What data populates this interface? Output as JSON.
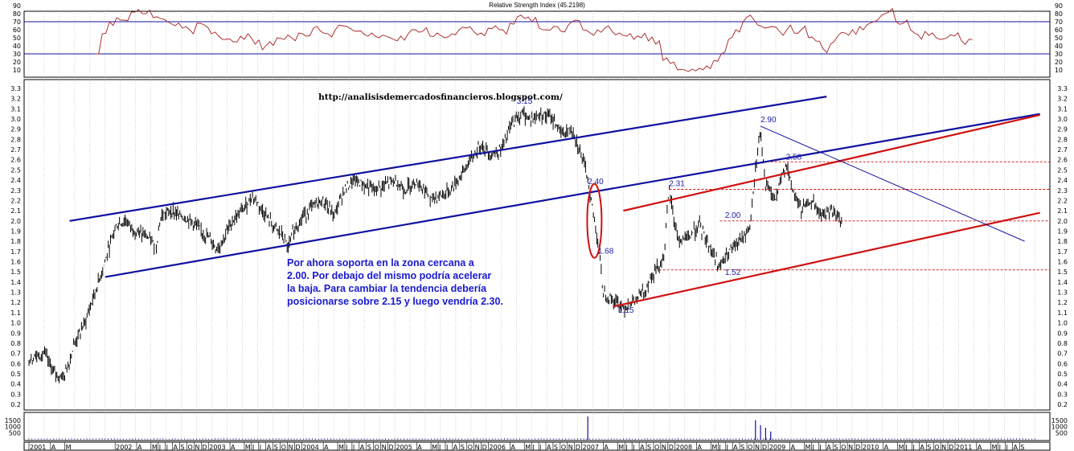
{
  "rsi_title": "Relative Strength Index (45.2198)",
  "url": "http://analisisdemercadosfinancieros.blogspot.com/",
  "comment": "Por ahora soporta en la zona cercana a\n2.00. Por debajo del mismo podría acelerar\nla baja. Para cambiar la tendencia debería\nposicionarse sobre 2.15 y luego vendría 2.30.",
  "colors": {
    "rsi_line": "#a82020",
    "channel_blue": "#1010a0",
    "channel_red": "#d01010",
    "annotation": "#1a1aa6",
    "price_bars": "#000000",
    "grid": "#b0b0b0"
  },
  "chart_data": [
    {
      "type": "line",
      "name": "rsi_panel",
      "title": "Relative Strength Index (45.2198)",
      "ylim": [
        0,
        95
      ],
      "y_ticks": [
        "90",
        "80",
        "70",
        "60",
        "50",
        "40",
        "30",
        "20",
        "10"
      ],
      "reference_lines": [
        70,
        30
      ],
      "series": [
        {
          "values": [
            30,
            55,
            70,
            75,
            72,
            82,
            85,
            80,
            75,
            74,
            70,
            65,
            62,
            60,
            68,
            66,
            55,
            52,
            48,
            45,
            52,
            55,
            42,
            35,
            45,
            50,
            48,
            50,
            56,
            52,
            62,
            58,
            55,
            60,
            65,
            62,
            58,
            54,
            56,
            50,
            52,
            48,
            52,
            55,
            60,
            58,
            52,
            56,
            50,
            55,
            60,
            62,
            58,
            56,
            62,
            65,
            60,
            68,
            76,
            74,
            70,
            62,
            60,
            64,
            58,
            66,
            72,
            60,
            56,
            60,
            62,
            58,
            56,
            52,
            48,
            50,
            46,
            42,
            22,
            18,
            10,
            10,
            11,
            12,
            15,
            22,
            30,
            48,
            60,
            70,
            78,
            66,
            62,
            64,
            58,
            60,
            56,
            60,
            50,
            46,
            36,
            42,
            52,
            56,
            60,
            64,
            66,
            70,
            78,
            82,
            70,
            68,
            60,
            54,
            58,
            56,
            48,
            50,
            52,
            46,
            48
          ]
        }
      ]
    },
    {
      "type": "bar",
      "name": "price_panel",
      "ylabel": "",
      "ylim": [
        0.15,
        3.35
      ],
      "y_ticks": [
        "3.3",
        "3.2",
        "3.1",
        "3.0",
        "2.9",
        "2.8",
        "2.7",
        "2.6",
        "2.5",
        "2.4",
        "2.3",
        "2.2",
        "2.1",
        "2.0",
        "1.9",
        "1.8",
        "1.7",
        "1.6",
        "1.5",
        "1.4",
        "1.3",
        "1.2",
        "1.1",
        "1.0",
        "0.9",
        "0.8",
        "0.7",
        "0.6",
        "0.5",
        "0.4",
        "0.3",
        "0.2"
      ],
      "x_labels": [
        "2001",
        "A",
        "M",
        "2002",
        "A",
        "M",
        "J",
        "J",
        "A",
        "S",
        "O",
        "N",
        "D",
        "2003",
        "A",
        "M",
        "J",
        "J",
        "A",
        "S",
        "O",
        "N",
        "D",
        "2004",
        "A",
        "M",
        "J",
        "J",
        "A",
        "S",
        "O",
        "N",
        "D",
        "2005",
        "A",
        "M",
        "J",
        "J",
        "A",
        "S",
        "O",
        "N",
        "D",
        "2006",
        "A",
        "M",
        "J",
        "J",
        "A",
        "S",
        "O",
        "N",
        "D",
        "2007",
        "A",
        "M",
        "J",
        "J",
        "A",
        "S",
        "O",
        "N",
        "D",
        "2008",
        "A",
        "M",
        "J",
        "J",
        "A",
        "S",
        "O",
        "N",
        "D",
        "2009",
        "A",
        "M",
        "J",
        "J",
        "A",
        "S",
        "O",
        "N",
        "D",
        "2010",
        "A",
        "M",
        "J",
        "J",
        "A",
        "S",
        "O",
        "N",
        "D",
        "2011",
        "A",
        "M",
        "J",
        "J",
        "A",
        "S"
      ],
      "x_months": [
        0,
        3,
        5,
        12,
        15,
        17,
        18,
        19,
        20,
        21,
        22,
        23,
        24,
        25,
        28,
        30,
        31,
        32,
        33,
        34,
        35,
        36,
        37,
        38,
        41,
        43,
        44,
        45,
        46,
        47,
        48,
        49,
        50,
        51,
        54,
        56,
        57,
        58,
        59,
        60,
        61,
        62,
        63,
        64,
        67,
        69,
        70,
        71,
        72,
        73,
        74,
        75,
        76,
        77,
        80,
        82,
        83,
        84,
        85,
        86,
        87,
        88,
        89,
        90,
        93,
        95,
        96,
        97,
        98,
        99,
        100,
        101,
        102,
        103,
        106,
        108,
        109,
        110,
        111,
        112,
        113,
        114,
        115,
        116,
        119,
        121,
        122,
        123,
        124,
        125,
        126,
        127,
        128,
        129,
        132,
        134,
        135,
        136,
        137,
        138
      ],
      "price_curve": [
        [
          0,
          0.65
        ],
        [
          3,
          0.7
        ],
        [
          5,
          0.5
        ],
        [
          7,
          0.48
        ],
        [
          9,
          0.8
        ],
        [
          11,
          1.0
        ],
        [
          13,
          1.3
        ],
        [
          15,
          1.6
        ],
        [
          17,
          1.95
        ],
        [
          19,
          2.0
        ],
        [
          21,
          1.9
        ],
        [
          23,
          1.85
        ],
        [
          25,
          1.75
        ],
        [
          26,
          2.05
        ],
        [
          28,
          2.1
        ],
        [
          30,
          2.05
        ],
        [
          32,
          2.0
        ],
        [
          34,
          1.9
        ],
        [
          36,
          1.8
        ],
        [
          37,
          1.72
        ],
        [
          38,
          1.8
        ],
        [
          40,
          2.0
        ],
        [
          42,
          2.1
        ],
        [
          44,
          2.25
        ],
        [
          46,
          2.1
        ],
        [
          48,
          1.95
        ],
        [
          50,
          1.85
        ],
        [
          51,
          1.72
        ],
        [
          52,
          1.9
        ],
        [
          54,
          2.05
        ],
        [
          56,
          2.15
        ],
        [
          58,
          2.2
        ],
        [
          60,
          2.05
        ],
        [
          62,
          2.3
        ],
        [
          64,
          2.4
        ],
        [
          66,
          2.35
        ],
        [
          68,
          2.3
        ],
        [
          70,
          2.35
        ],
        [
          72,
          2.4
        ],
        [
          74,
          2.3
        ],
        [
          76,
          2.4
        ],
        [
          78,
          2.3
        ],
        [
          79,
          2.2
        ],
        [
          81,
          2.25
        ],
        [
          83,
          2.3
        ],
        [
          85,
          2.45
        ],
        [
          87,
          2.6
        ],
        [
          89,
          2.75
        ],
        [
          91,
          2.65
        ],
        [
          93,
          2.7
        ],
        [
          95,
          2.95
        ],
        [
          97,
          3.05
        ],
        [
          99,
          3.0
        ],
        [
          101,
          3.05
        ],
        [
          103,
          3.0
        ],
        [
          105,
          2.85
        ],
        [
          107,
          2.9
        ],
        [
          108,
          2.75
        ],
        [
          109,
          2.6
        ],
        [
          110,
          2.4
        ],
        [
          111,
          2.1
        ],
        [
          112,
          1.8
        ],
        [
          113,
          1.3
        ],
        [
          115,
          1.22
        ],
        [
          117,
          1.15
        ],
        [
          119,
          1.2
        ],
        [
          121,
          1.3
        ],
        [
          123,
          1.5
        ],
        [
          125,
          1.65
        ],
        [
          126,
          2.31
        ],
        [
          127,
          2.0
        ],
        [
          128,
          1.8
        ],
        [
          130,
          1.85
        ],
        [
          132,
          1.95
        ],
        [
          134,
          1.75
        ],
        [
          136,
          1.55
        ],
        [
          138,
          1.7
        ],
        [
          140,
          1.8
        ],
        [
          142,
          1.95
        ],
        [
          143,
          2.5
        ],
        [
          144,
          2.9
        ],
        [
          145,
          2.35
        ],
        [
          147,
          2.2
        ],
        [
          149,
          2.58
        ],
        [
          150,
          2.35
        ],
        [
          152,
          2.1
        ],
        [
          154,
          2.2
        ],
        [
          156,
          2.05
        ],
        [
          158,
          2.1
        ],
        [
          160,
          2.0
        ]
      ],
      "channels": [
        {
          "color": "blue",
          "from": [
            8,
            2.0
          ],
          "to": [
            157,
            3.22
          ]
        },
        {
          "color": "blue",
          "from": [
            15,
            1.45
          ],
          "to": [
            199,
            3.05
          ]
        },
        {
          "color": "red",
          "from": [
            115,
            1.16
          ],
          "to": [
            199,
            2.08
          ]
        },
        {
          "color": "red",
          "from": [
            117,
            2.1
          ],
          "to": [
            199,
            3.04
          ]
        },
        {
          "color": "blue",
          "from": [
            144,
            2.93
          ],
          "to": [
            196,
            1.8
          ]
        }
      ],
      "dashed_levels": [
        2.58,
        2.31,
        2.0,
        1.52
      ],
      "annotations": [
        {
          "text": "3.15",
          "x": 96,
          "y": 3.15
        },
        {
          "text": "2.40",
          "x": 110,
          "y": 2.36
        },
        {
          "text": "1.68",
          "x": 112,
          "y": 1.68
        },
        {
          "text": "1.15",
          "x": 116,
          "y": 1.1
        },
        {
          "text": "2.31",
          "x": 126,
          "y": 2.34
        },
        {
          "text": "2.00",
          "x": 137,
          "y": 2.03
        },
        {
          "text": "1.52",
          "x": 137,
          "y": 1.47
        },
        {
          "text": "2.90",
          "x": 144,
          "y": 2.97
        },
        {
          "text": "2.58",
          "x": 149,
          "y": 2.6
        }
      ]
    },
    {
      "type": "bar",
      "name": "volume_panel",
      "y_ticks": [
        "1500",
        "1000",
        "500"
      ],
      "spikes": [
        {
          "x": 110,
          "value": 1800
        },
        {
          "x": 143,
          "value": 1500
        },
        {
          "x": 144,
          "value": 1100
        },
        {
          "x": 145,
          "value": 900
        },
        {
          "x": 146,
          "value": 600
        }
      ]
    }
  ]
}
